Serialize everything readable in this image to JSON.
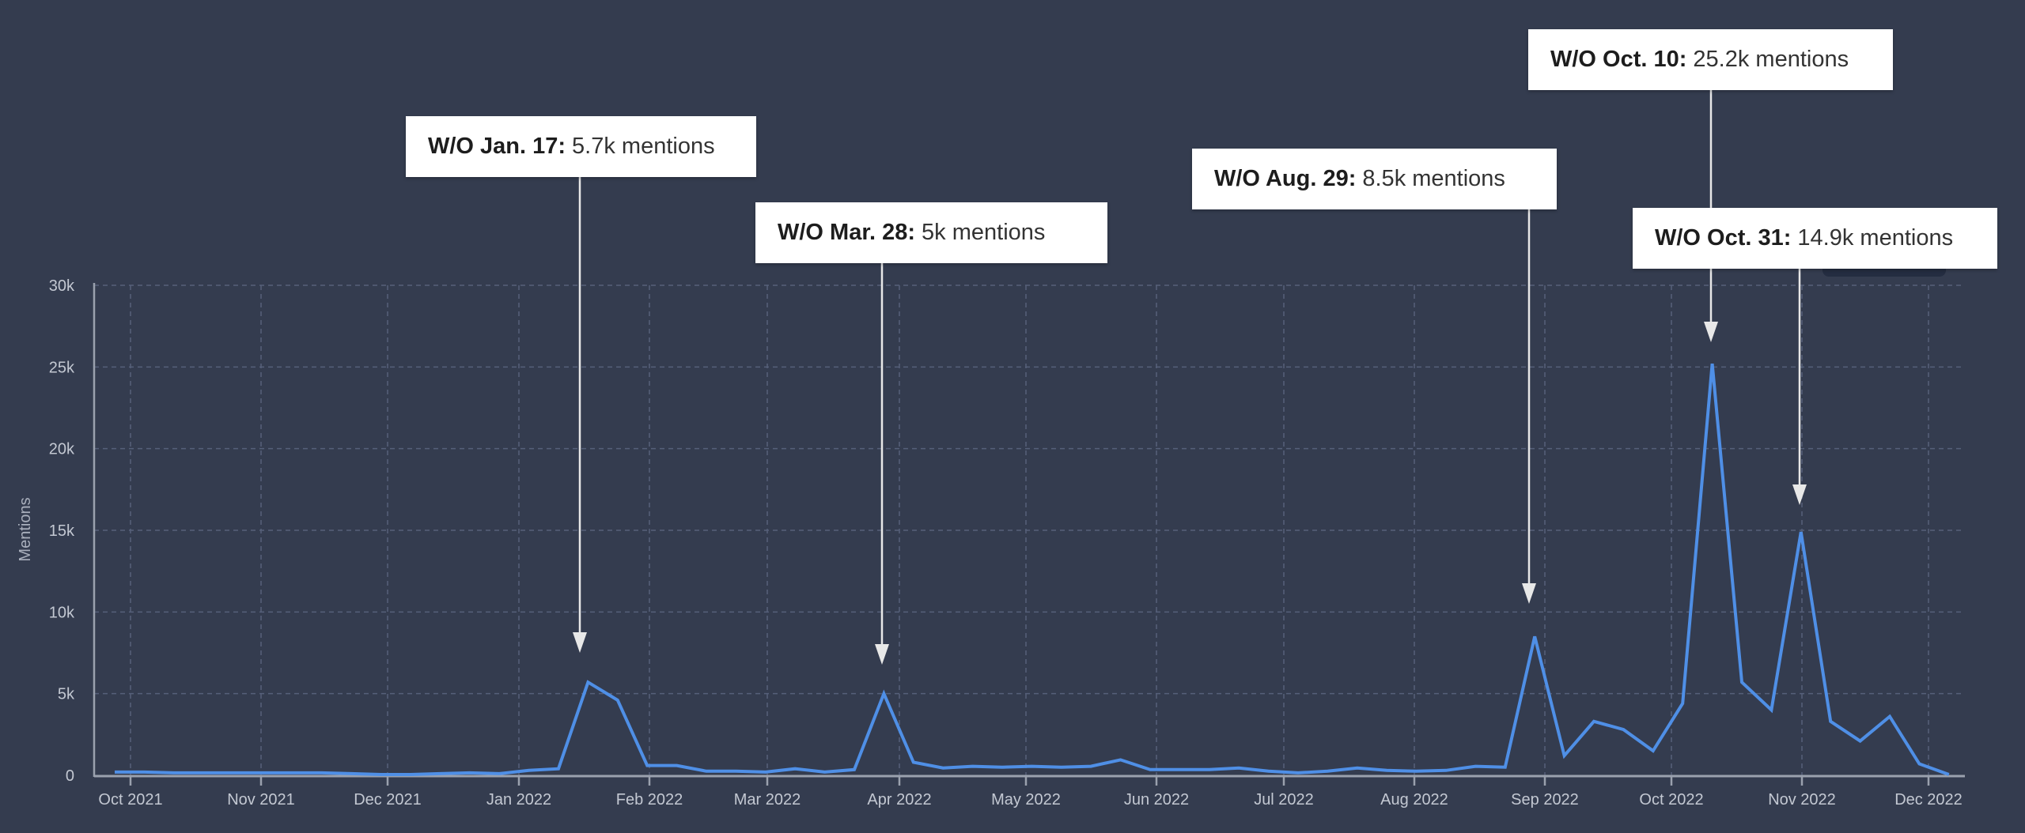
{
  "chart_data": {
    "type": "line",
    "title": "",
    "xlabel": "",
    "ylabel": "Mentions",
    "ylim": [
      0,
      30000
    ],
    "y_ticks": [
      "0",
      "5k",
      "10k",
      "15k",
      "20k",
      "25k",
      "30k"
    ],
    "x_ticks": [
      "Oct 2021",
      "Nov 2021",
      "Dec 2021",
      "Jan 2022",
      "Feb 2022",
      "Mar 2022",
      "Apr 2022",
      "May 2022",
      "Jun 2022",
      "Jul 2022",
      "Aug 2022",
      "Sep 2022",
      "Oct 2022",
      "Nov 2022",
      "Dec 2022"
    ],
    "grid": true,
    "legend": null,
    "series": [
      {
        "name": "Mentions",
        "color": "#4f8fe6",
        "x": [
          "2021-09-27",
          "2021-10-04",
          "2021-10-11",
          "2021-10-18",
          "2021-10-25",
          "2021-11-01",
          "2021-11-08",
          "2021-11-15",
          "2021-11-22",
          "2021-11-29",
          "2021-12-06",
          "2021-12-13",
          "2021-12-20",
          "2021-12-27",
          "2022-01-03",
          "2022-01-10",
          "2022-01-17",
          "2022-01-24",
          "2022-01-31",
          "2022-02-07",
          "2022-02-14",
          "2022-02-21",
          "2022-02-28",
          "2022-03-07",
          "2022-03-14",
          "2022-03-21",
          "2022-03-28",
          "2022-04-04",
          "2022-04-11",
          "2022-04-18",
          "2022-04-25",
          "2022-05-02",
          "2022-05-09",
          "2022-05-16",
          "2022-05-23",
          "2022-05-30",
          "2022-06-06",
          "2022-06-13",
          "2022-06-20",
          "2022-06-27",
          "2022-07-04",
          "2022-07-11",
          "2022-07-18",
          "2022-07-25",
          "2022-08-01",
          "2022-08-08",
          "2022-08-15",
          "2022-08-22",
          "2022-08-29",
          "2022-09-05",
          "2022-09-12",
          "2022-09-19",
          "2022-09-26",
          "2022-10-03",
          "2022-10-10",
          "2022-10-17",
          "2022-10-24",
          "2022-10-31",
          "2022-11-07",
          "2022-11-14",
          "2022-11-21",
          "2022-11-28",
          "2022-12-05"
        ],
        "values": [
          200,
          200,
          150,
          150,
          150,
          150,
          150,
          150,
          100,
          50,
          50,
          100,
          150,
          100,
          300,
          400,
          5700,
          4600,
          600,
          600,
          250,
          250,
          200,
          400,
          200,
          350,
          5000,
          800,
          450,
          550,
          500,
          550,
          500,
          550,
          950,
          350,
          350,
          350,
          450,
          250,
          150,
          250,
          450,
          300,
          250,
          300,
          550,
          500,
          8500,
          1200,
          3300,
          2800,
          1500,
          4400,
          25200,
          5700,
          4000,
          14900,
          3300,
          2100,
          3600,
          700,
          50
        ]
      }
    ],
    "annotations": [
      {
        "date_label": "W/O Jan. 17:",
        "value_label": "5.7k mentions",
        "week": "2022-01-17"
      },
      {
        "date_label": "W/O Mar. 28:",
        "value_label": "5k mentions",
        "week": "2022-03-28"
      },
      {
        "date_label": "W/O Aug. 29:",
        "value_label": "8.5k mentions",
        "week": "2022-08-29"
      },
      {
        "date_label": "W/O Oct. 10:",
        "value_label": "25.2k mentions",
        "week": "2022-10-10"
      },
      {
        "date_label": "W/O Oct. 31:",
        "value_label": "14.9k mentions",
        "week": "2022-10-31"
      }
    ]
  },
  "colors": {
    "background": "#343c4f",
    "line": "#4f8fe6",
    "grid": "#56607a",
    "axis": "#9aa1ae",
    "arrow": "#e8e8e8"
  }
}
